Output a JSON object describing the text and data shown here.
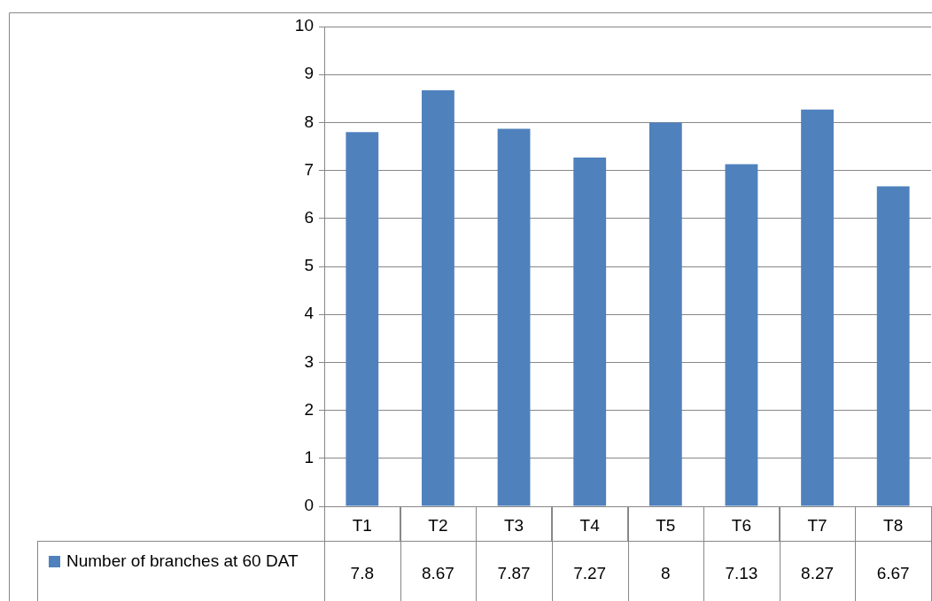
{
  "chart_data": {
    "type": "bar",
    "categories": [
      "T1",
      "T2",
      "T3",
      "T4",
      "T5",
      "T6",
      "T7",
      "T8"
    ],
    "series": [
      {
        "name": "Number of branches at 60 DAT",
        "color": "#4f81bd",
        "values": [
          7.8,
          8.67,
          7.87,
          7.27,
          8,
          7.13,
          8.27,
          6.67
        ]
      }
    ],
    "ylim": [
      0,
      10
    ],
    "yticks": [
      0,
      1,
      2,
      3,
      4,
      5,
      6,
      7,
      8,
      9,
      10
    ],
    "grid": "y",
    "legend": "bottom left",
    "data_labels": true
  }
}
